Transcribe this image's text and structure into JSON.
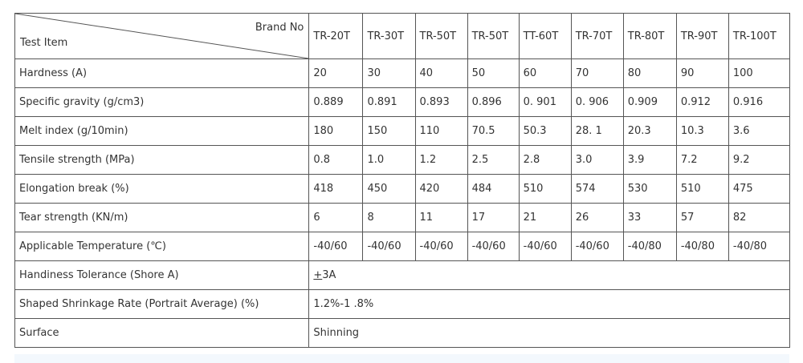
{
  "header": {
    "brand_label": "Brand No",
    "item_label": "Test Item",
    "brands": [
      "TR-20T",
      "TR-30T",
      "TR-50T",
      "TR-50T",
      "TT-60T",
      "TR-70T",
      "TR-80T",
      "TR-90T",
      "TR-100T"
    ]
  },
  "rows": [
    {
      "label": "Hardness (A)",
      "values": [
        "20",
        "30",
        "40",
        "50",
        "60",
        "70",
        "80",
        "90",
        "100"
      ]
    },
    {
      "label": "Specific gravity (g/cm3)",
      "values": [
        "0.889",
        "0.891",
        "0.893",
        "0.896",
        "0. 901",
        "0. 906",
        "0.909",
        "0.912",
        "0.916"
      ]
    },
    {
      "label": "Melt index (g/10min)",
      "values": [
        "180",
        "150",
        "110",
        "70.5",
        "50.3",
        "28. 1",
        "20.3",
        "10.3",
        "3.6"
      ]
    },
    {
      "label": "Tensile strength (MPa)",
      "values": [
        "0.8",
        "1.0",
        "1.2",
        "2.5",
        "2.8",
        "3.0",
        "3.9",
        "7.2",
        "9.2"
      ]
    },
    {
      "label": "Elongation break (%)",
      "values": [
        "418",
        "450",
        "420",
        "484",
        "510",
        "574",
        "530",
        "510",
        "475"
      ]
    },
    {
      "label": "Tear strength (KN/m)",
      "values": [
        "6",
        "8",
        "11",
        "17",
        "21",
        "26",
        "33",
        "57",
        "82"
      ]
    },
    {
      "label": "Applicable Temperature (℃)",
      "values": [
        "-40/60",
        "-40/60",
        "-40/60",
        "-40/60",
        "-40/60",
        "-40/60",
        "-40/80",
        "-40/80",
        "-40/80"
      ]
    }
  ],
  "merged_rows": [
    {
      "label": "Handiness Tolerance (Shore A)",
      "prefix": "+",
      "value": "3A"
    },
    {
      "label": "Shaped Shrinkage Rate (Portrait Average)   (%)",
      "prefix": "",
      "value": "1.2%-1 .8%"
    },
    {
      "label": "Surface",
      "prefix": "",
      "value": "Shinning"
    }
  ]
}
